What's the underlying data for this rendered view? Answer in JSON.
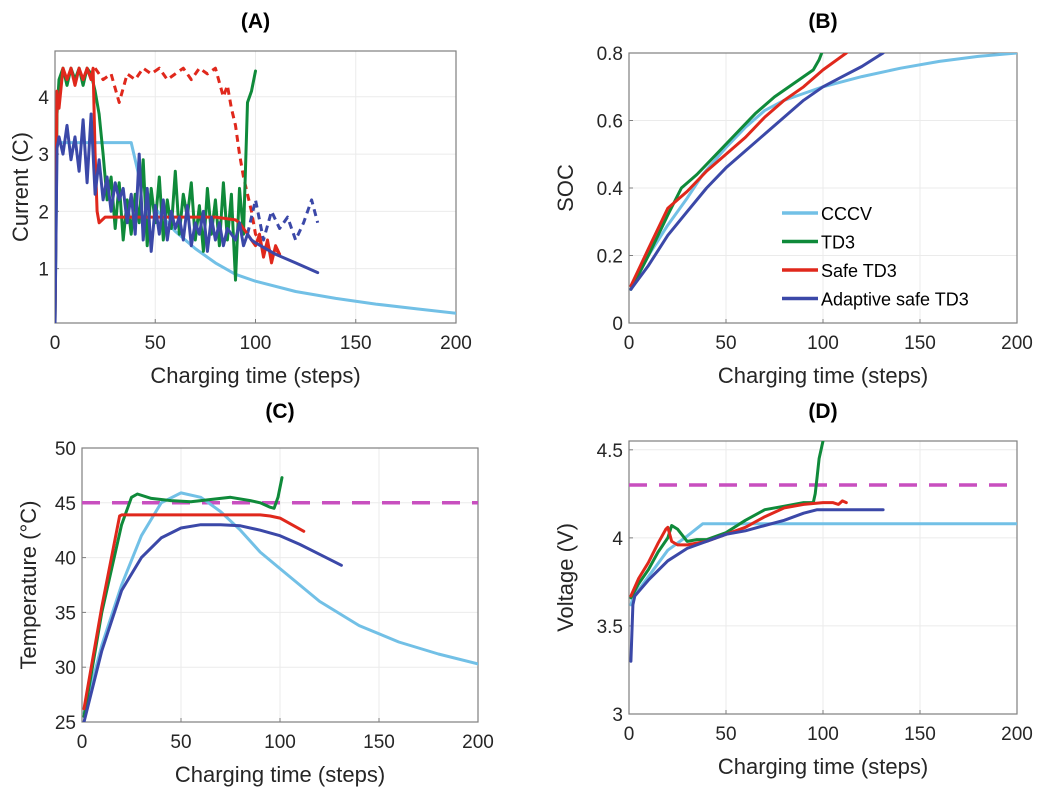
{
  "figure": {
    "panels": [
      "A",
      "B",
      "C",
      "D"
    ]
  },
  "colors": {
    "CCCV": "#72c0e6",
    "TD3": "#0f8a3a",
    "Safe TD3": "#e0281c",
    "Adaptive safe TD3": "#3b48a8",
    "limit": "#c84fbf"
  },
  "chart_data": [
    {
      "id": "A",
      "type": "line",
      "title": "(A)",
      "xlabel": "Charging time (steps)",
      "ylabel": "Current (C)",
      "xlim": [
        0,
        200
      ],
      "ylim": [
        0.05,
        4.8
      ],
      "xticks": [
        0,
        50,
        100,
        150,
        200
      ],
      "yticks": [
        1,
        2,
        3,
        4
      ],
      "grid": true,
      "series": [
        {
          "name": "CCCV",
          "x": [
            0,
            1,
            2,
            38,
            42,
            50,
            60,
            70,
            80,
            90,
            100,
            120,
            140,
            160,
            180,
            200
          ],
          "y": [
            0.05,
            3.2,
            3.2,
            3.2,
            2.6,
            2.05,
            1.65,
            1.35,
            1.1,
            0.9,
            0.78,
            0.6,
            0.48,
            0.38,
            0.3,
            0.22
          ]
        },
        {
          "name": "TD3",
          "x": [
            0,
            1,
            2,
            4,
            6,
            8,
            10,
            12,
            14,
            16,
            18,
            20,
            22,
            24,
            26,
            28,
            30,
            32,
            34,
            36,
            38,
            40,
            42,
            44,
            46,
            48,
            50,
            52,
            54,
            56,
            58,
            60,
            62,
            64,
            66,
            68,
            70,
            72,
            74,
            76,
            78,
            80,
            82,
            84,
            86,
            88,
            90,
            92,
            94,
            96,
            98,
            100
          ],
          "y": [
            0.05,
            3.7,
            4.3,
            4.5,
            4.2,
            4.5,
            4.3,
            4.5,
            4.2,
            4.5,
            4.4,
            4.1,
            3.7,
            3.0,
            2.2,
            2.6,
            1.7,
            2.5,
            1.5,
            2.2,
            1.6,
            2.3,
            1.8,
            2.9,
            1.4,
            2.4,
            1.8,
            2.6,
            1.5,
            2.2,
            1.7,
            2.7,
            1.6,
            2.3,
            1.9,
            2.5,
            1.5,
            2.1,
            1.3,
            2.4,
            1.6,
            2.2,
            1.4,
            2.5,
            1.5,
            2.3,
            0.8,
            2.4,
            1.6,
            3.9,
            4.1,
            4.45
          ]
        },
        {
          "name": "Safe TD3",
          "x": [
            0,
            1,
            2,
            4,
            6,
            8,
            10,
            12,
            14,
            16,
            18,
            19,
            20,
            21,
            22,
            25,
            30,
            40,
            50,
            60,
            70,
            80,
            90,
            92,
            94,
            96,
            98,
            100,
            102,
            104,
            106,
            108,
            110,
            112
          ],
          "y": [
            0.05,
            4.1,
            3.8,
            4.5,
            4.3,
            4.5,
            4.2,
            4.5,
            4.3,
            4.5,
            4.3,
            4.5,
            3.0,
            2.0,
            1.8,
            1.9,
            1.9,
            1.9,
            1.9,
            1.9,
            1.9,
            1.9,
            1.85,
            1.8,
            1.7,
            1.6,
            1.5,
            1.4,
            1.6,
            1.2,
            1.5,
            1.1,
            1.4,
            1.25
          ]
        },
        {
          "name": "Adaptive safe TD3",
          "x": [
            0,
            1,
            2,
            4,
            6,
            8,
            10,
            12,
            14,
            16,
            18,
            20,
            22,
            24,
            26,
            28,
            30,
            32,
            34,
            36,
            38,
            40,
            42,
            44,
            46,
            48,
            50,
            52,
            54,
            56,
            58,
            60,
            62,
            64,
            66,
            68,
            70,
            72,
            74,
            76,
            78,
            80,
            82,
            84,
            86,
            88,
            90,
            92,
            94,
            96,
            98,
            100,
            110,
            120,
            131
          ],
          "y": [
            0.05,
            3.1,
            3.3,
            3.0,
            3.5,
            2.9,
            3.3,
            2.7,
            3.6,
            2.5,
            3.7,
            2.3,
            2.9,
            2.2,
            2.6,
            2.0,
            2.5,
            2.2,
            2.4,
            1.8,
            2.3,
            1.6,
            3.0,
            1.5,
            2.4,
            1.3,
            2.1,
            1.6,
            2.2,
            1.5,
            2.0,
            1.7,
            1.9,
            1.5,
            2.1,
            1.4,
            1.8,
            1.6,
            2.0,
            1.3,
            1.9,
            1.5,
            1.8,
            1.4,
            1.7,
            1.6,
            1.5,
            1.8,
            1.4,
            1.6,
            1.5,
            1.45,
            1.25,
            1.1,
            0.93
          ]
        }
      ],
      "dashed_series": [
        {
          "name": "Safe TD3 (action)",
          "x": [
            20,
            24,
            28,
            32,
            36,
            40,
            44,
            48,
            52,
            56,
            60,
            64,
            68,
            72,
            76,
            80,
            84,
            86,
            88,
            90,
            92,
            94,
            96,
            98,
            100,
            102,
            104,
            106,
            108,
            110,
            112
          ],
          "y": [
            4.5,
            4.3,
            4.4,
            3.9,
            4.4,
            4.3,
            4.5,
            4.4,
            4.5,
            4.3,
            4.4,
            4.5,
            4.3,
            4.5,
            4.4,
            4.5,
            4.0,
            4.2,
            3.8,
            3.5,
            3.0,
            2.6,
            2.3,
            2.0,
            1.6,
            1.5,
            1.3,
            1.45,
            1.2,
            1.35,
            1.25
          ]
        },
        {
          "name": "Adaptive safe TD3 (action)",
          "x": [
            96,
            100,
            104,
            108,
            112,
            116,
            120,
            124,
            128,
            131
          ],
          "y": [
            1.6,
            2.2,
            1.5,
            2.0,
            1.7,
            1.9,
            1.5,
            1.8,
            2.2,
            1.8
          ]
        }
      ]
    },
    {
      "id": "B",
      "type": "line",
      "title": "(B)",
      "xlabel": "Charging time (steps)",
      "ylabel": "SOC",
      "xlim": [
        0,
        200
      ],
      "ylim": [
        0,
        0.8
      ],
      "xticks": [
        0,
        50,
        100,
        150,
        200
      ],
      "yticks": [
        0,
        0.2,
        0.4,
        0.6,
        0.8
      ],
      "grid": true,
      "legend": {
        "placement": "lower-right",
        "entries": [
          "CCCV",
          "TD3",
          "Safe TD3",
          "Adaptive safe TD3"
        ]
      },
      "series": [
        {
          "name": "CCCV",
          "x": [
            1,
            10,
            20,
            30,
            38,
            50,
            60,
            70,
            80,
            90,
            100,
            120,
            140,
            160,
            180,
            200
          ],
          "y": [
            0.1,
            0.2,
            0.29,
            0.37,
            0.44,
            0.52,
            0.58,
            0.63,
            0.66,
            0.68,
            0.7,
            0.73,
            0.755,
            0.775,
            0.79,
            0.8
          ]
        },
        {
          "name": "TD3",
          "x": [
            1,
            10,
            20,
            27,
            35,
            45,
            55,
            65,
            75,
            85,
            95,
            98,
            100
          ],
          "y": [
            0.1,
            0.2,
            0.32,
            0.4,
            0.44,
            0.5,
            0.56,
            0.62,
            0.67,
            0.71,
            0.75,
            0.78,
            0.81
          ]
        },
        {
          "name": "Safe TD3",
          "x": [
            1,
            10,
            20,
            30,
            40,
            50,
            60,
            70,
            80,
            90,
            100,
            112
          ],
          "y": [
            0.11,
            0.22,
            0.34,
            0.39,
            0.45,
            0.5,
            0.55,
            0.61,
            0.66,
            0.7,
            0.75,
            0.8
          ]
        },
        {
          "name": "Adaptive safe TD3",
          "x": [
            1,
            10,
            20,
            30,
            40,
            50,
            60,
            70,
            80,
            90,
            100,
            110,
            120,
            131
          ],
          "y": [
            0.1,
            0.17,
            0.26,
            0.33,
            0.4,
            0.46,
            0.51,
            0.56,
            0.61,
            0.66,
            0.7,
            0.73,
            0.76,
            0.8
          ]
        }
      ]
    },
    {
      "id": "C",
      "type": "line",
      "title": "(C)",
      "xlabel": "Charging time (steps)",
      "ylabel": "Temperature (°C)",
      "xlim": [
        0,
        200
      ],
      "ylim": [
        25,
        50
      ],
      "xticks": [
        0,
        50,
        100,
        150,
        200
      ],
      "yticks": [
        25,
        30,
        35,
        40,
        45,
        50
      ],
      "grid": true,
      "limit_line": {
        "value": 45,
        "style": "dashed"
      },
      "series": [
        {
          "name": "CCCV",
          "x": [
            1,
            10,
            20,
            30,
            40,
            50,
            60,
            70,
            80,
            90,
            100,
            120,
            140,
            160,
            180,
            200
          ],
          "y": [
            25.8,
            32,
            37.5,
            42,
            45,
            45.9,
            45.5,
            44.2,
            42.5,
            40.5,
            39,
            36,
            33.8,
            32.3,
            31.2,
            30.3
          ]
        },
        {
          "name": "TD3",
          "x": [
            1,
            10,
            20,
            25,
            28,
            35,
            45,
            55,
            65,
            75,
            85,
            90,
            95,
            97,
            99,
            101
          ],
          "y": [
            25.5,
            35,
            43,
            45.5,
            45.8,
            45.4,
            45.2,
            45.1,
            45.3,
            45.5,
            45.2,
            45,
            44.6,
            44.5,
            45.5,
            47.3
          ]
        },
        {
          "name": "Safe TD3",
          "x": [
            1,
            10,
            19,
            20,
            30,
            50,
            70,
            90,
            95,
            100,
            105,
            112
          ],
          "y": [
            26.2,
            35.5,
            43.8,
            43.9,
            43.9,
            43.9,
            43.9,
            43.9,
            43.8,
            43.6,
            43.1,
            42.4
          ]
        },
        {
          "name": "Adaptive safe TD3",
          "x": [
            1,
            10,
            20,
            30,
            40,
            50,
            60,
            70,
            80,
            90,
            100,
            110,
            120,
            131
          ],
          "y": [
            25,
            31.5,
            37,
            40,
            41.8,
            42.7,
            43,
            43,
            42.9,
            42.5,
            42,
            41.2,
            40.3,
            39.3
          ]
        }
      ]
    },
    {
      "id": "D",
      "type": "line",
      "title": "(D)",
      "xlabel": "Charging time (steps)",
      "ylabel": "Voltage (V)",
      "xlim": [
        0,
        200
      ],
      "ylim": [
        3,
        4.55
      ],
      "xticks": [
        0,
        50,
        100,
        150,
        200
      ],
      "yticks": [
        3,
        3.5,
        4,
        4.5
      ],
      "grid": true,
      "limit_line": {
        "value": 4.3,
        "style": "dashed"
      },
      "series": [
        {
          "name": "CCCV",
          "x": [
            1,
            2,
            10,
            20,
            30,
            38,
            60,
            100,
            150,
            200
          ],
          "y": [
            3.62,
            3.66,
            3.78,
            3.93,
            4.01,
            4.08,
            4.08,
            4.08,
            4.08,
            4.08
          ]
        },
        {
          "name": "TD3",
          "x": [
            1,
            5,
            10,
            15,
            20,
            22,
            25,
            30,
            35,
            40,
            50,
            60,
            70,
            80,
            90,
            95,
            96,
            97,
            98,
            100,
            101
          ],
          "y": [
            3.66,
            3.74,
            3.82,
            3.92,
            4.0,
            4.07,
            4.05,
            3.98,
            3.99,
            3.99,
            4.03,
            4.1,
            4.16,
            4.18,
            4.2,
            4.2,
            4.25,
            4.35,
            4.45,
            4.55,
            4.6
          ]
        },
        {
          "name": "Safe TD3",
          "x": [
            1,
            5,
            10,
            15,
            19,
            20,
            22,
            25,
            30,
            40,
            50,
            60,
            70,
            80,
            90,
            100,
            105,
            108,
            110,
            112
          ],
          "y": [
            3.67,
            3.77,
            3.86,
            3.97,
            4.05,
            4.06,
            3.98,
            3.96,
            3.96,
            3.98,
            4.02,
            4.06,
            4.12,
            4.17,
            4.19,
            4.2,
            4.2,
            4.19,
            4.21,
            4.2
          ]
        },
        {
          "name": "Adaptive safe TD3",
          "x": [
            1,
            2,
            3,
            10,
            20,
            30,
            40,
            50,
            60,
            70,
            80,
            90,
            97,
            100,
            110,
            120,
            131
          ],
          "y": [
            3.3,
            3.62,
            3.67,
            3.76,
            3.87,
            3.94,
            3.98,
            4.02,
            4.04,
            4.07,
            4.1,
            4.14,
            4.16,
            4.16,
            4.16,
            4.16,
            4.16
          ]
        }
      ]
    }
  ]
}
